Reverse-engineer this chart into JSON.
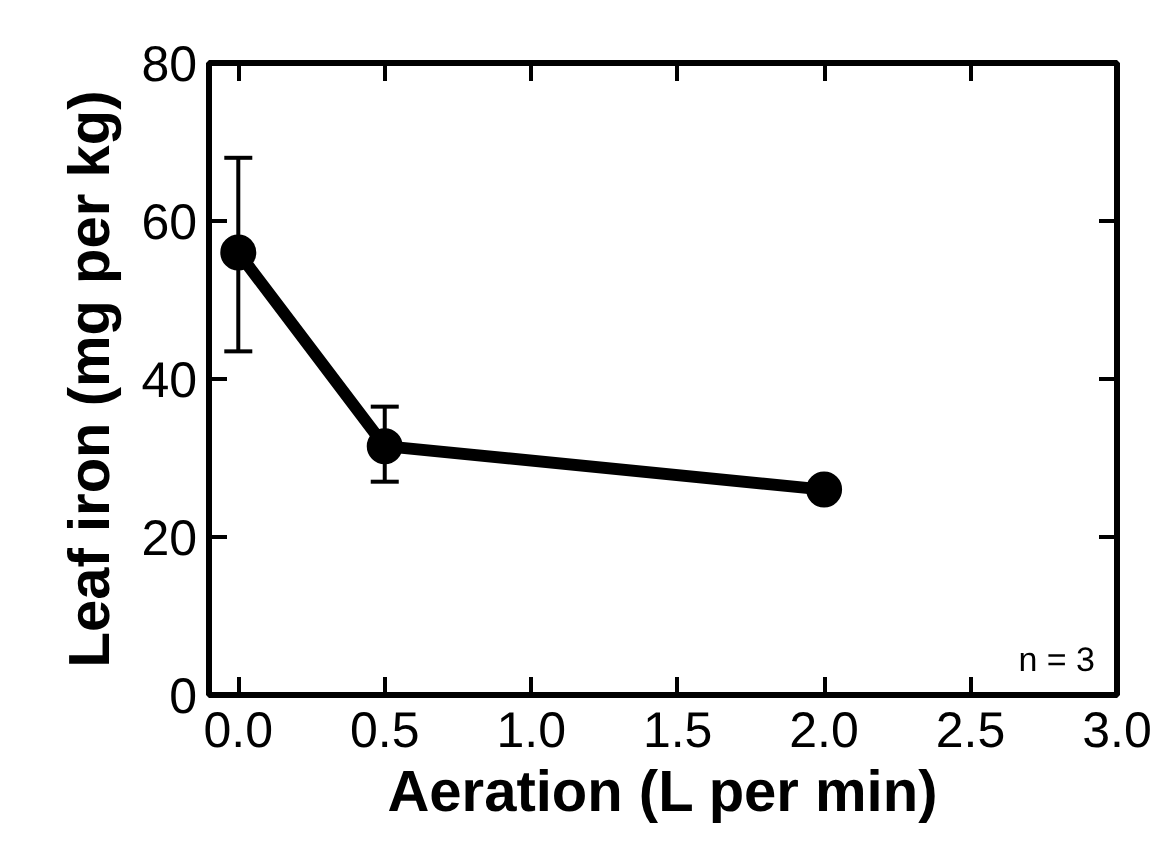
{
  "chart_data": {
    "type": "line",
    "xlabel": "Aeration (L per min)",
    "ylabel": "Leaf iron (mg per kg)",
    "x": [
      0,
      0.5,
      2.0
    ],
    "series": [
      {
        "color": "#000000",
        "values": [
          56,
          31.5,
          26
        ],
        "errors": [
          [
            43.5,
            68
          ],
          [
            27,
            36.5
          ],
          null
        ]
      }
    ],
    "xlim": [
      -0.1,
      3.0
    ],
    "ylim": [
      0,
      80
    ],
    "xticks": [
      {
        "value": 0,
        "label": "0.0"
      },
      {
        "value": 0.5,
        "label": "0.5"
      },
      {
        "value": 1,
        "label": "1.0"
      },
      {
        "value": 1.5,
        "label": "1.5"
      },
      {
        "value": 2,
        "label": "2.0"
      },
      {
        "value": 2.5,
        "label": "2.5"
      },
      {
        "value": 3,
        "label": "3.0"
      }
    ],
    "yticks": [
      0,
      20,
      40,
      60,
      80
    ],
    "marker": "circle",
    "line_style": "solid",
    "grid": false,
    "annotations": [
      {
        "text": "n = 3"
      }
    ]
  }
}
